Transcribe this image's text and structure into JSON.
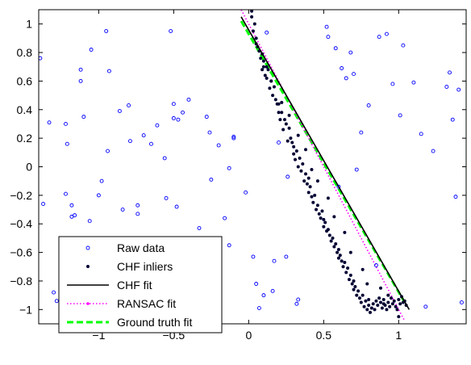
{
  "chart_data": {
    "type": "scatter",
    "title": "",
    "xlabel": "",
    "ylabel": "",
    "xlim": [
      -1.4,
      1.45
    ],
    "ylim": [
      -1.1,
      1.1
    ],
    "xticks": [
      -1,
      -0.5,
      0,
      0.5,
      1
    ],
    "xtick_labels": [
      "−1",
      "−0.5",
      "0",
      "0.5",
      "1"
    ],
    "yticks": [
      -1,
      -0.8,
      -0.6,
      -0.4,
      -0.2,
      0,
      0.2,
      0.4,
      0.6,
      0.8,
      1
    ],
    "ytick_labels": [
      "−1",
      "−0.8",
      "−0.6",
      "−0.4",
      "−0.2",
      "0",
      "0.2",
      "0.4",
      "0.6",
      "0.8",
      "1"
    ],
    "grid": false,
    "legend_position": "bottom-left",
    "series": [
      {
        "name": "Raw data",
        "kind": "markers",
        "marker": "open-circle",
        "color": "#0000ff",
        "x": [
          -1.39,
          -1.33,
          -1.28,
          -1.22,
          -1.21,
          -1.18,
          -1.16,
          -1.12,
          -1.1,
          -1.06,
          -1.05,
          -0.98,
          -0.95,
          -0.93,
          -0.86,
          -0.84,
          -0.8,
          -0.79,
          -0.74,
          -0.7,
          -0.65,
          -0.61,
          -0.56,
          -0.55,
          -0.52,
          -0.5,
          -0.47,
          -0.44,
          -0.4,
          -0.33,
          -0.28,
          -0.26,
          -0.2,
          -0.16,
          -0.13,
          -0.1,
          -0.1,
          -0.02,
          0.07,
          0.03,
          0.05,
          0.1,
          0.12,
          0.16,
          0.17,
          0.25,
          0.26,
          0.32,
          0.52,
          0.53,
          0.58,
          0.62,
          0.65,
          0.68,
          0.7,
          0.75,
          0.8,
          0.87,
          0.92,
          0.96,
          1.01,
          1.03,
          1.1,
          1.15,
          1.23,
          1.32,
          1.34,
          1.4,
          1.42,
          -1.37,
          -1.3,
          -1.22,
          -1.18,
          -1.12,
          -1.0,
          -0.94,
          -0.81,
          -0.74,
          -0.6,
          -0.48,
          -0.38,
          -0.33,
          -0.25,
          -0.13,
          0.2,
          0.33,
          0.6,
          0.72,
          0.85,
          1.18,
          1.36,
          1.38,
          -0.5,
          -0.78,
          -0.66
        ],
        "y": [
          0.76,
          0.31,
          -0.94,
          0.3,
          0.16,
          -0.27,
          -0.34,
          0.68,
          0.35,
          -0.38,
          0.82,
          -0.1,
          0.95,
          0.67,
          0.39,
          -0.3,
          0.43,
          0.18,
          -0.33,
          0.22,
          0.16,
          0.29,
          0.06,
          -0.22,
          0.95,
          0.34,
          0.33,
          0.38,
          0.47,
          -0.43,
          0.35,
          0.24,
          0.15,
          -0.36,
          -0.01,
          0.2,
          0.21,
          -0.18,
          -0.99,
          -0.63,
          -0.82,
          -0.9,
          0.94,
          -0.87,
          -0.66,
          -0.63,
          -0.07,
          -0.96,
          0.98,
          0.91,
          0.83,
          0.69,
          0.62,
          0.8,
          0.65,
          0.24,
          0.43,
          0.91,
          0.93,
          0.58,
          0.36,
          0.85,
          0.59,
          0.23,
          0.11,
          0.56,
          0.66,
          0.54,
          -0.95,
          -0.26,
          -0.88,
          -0.19,
          -0.35,
          0.6,
          -0.2,
          0.11,
          -0.56,
          -0.27,
          -0.62,
          -0.28,
          -0.66,
          -0.72,
          -0.09,
          -0.55,
          0.17,
          -0.93,
          -0.14,
          -0.02,
          -0.69,
          -0.98,
          0.33,
          -0.21,
          0.44,
          -0.76,
          -0.88
        ]
      },
      {
        "name": "CHF inliers",
        "kind": "markers",
        "marker": "filled-dot",
        "color": "#000033",
        "x": [
          0.02,
          0.03,
          0.04,
          0.05,
          0.05,
          0.06,
          0.07,
          0.08,
          0.09,
          0.1,
          0.1,
          0.11,
          0.12,
          0.13,
          0.14,
          0.15,
          0.16,
          0.17,
          0.18,
          0.19,
          0.2,
          0.2,
          0.21,
          0.22,
          0.23,
          0.24,
          0.25,
          0.26,
          0.27,
          0.28,
          0.29,
          0.3,
          0.3,
          0.31,
          0.32,
          0.33,
          0.34,
          0.35,
          0.36,
          0.37,
          0.38,
          0.39,
          0.4,
          0.4,
          0.41,
          0.42,
          0.43,
          0.44,
          0.45,
          0.46,
          0.47,
          0.48,
          0.49,
          0.5,
          0.5,
          0.51,
          0.52,
          0.53,
          0.54,
          0.55,
          0.56,
          0.57,
          0.58,
          0.59,
          0.6,
          0.6,
          0.61,
          0.62,
          0.63,
          0.64,
          0.65,
          0.66,
          0.67,
          0.68,
          0.69,
          0.7,
          0.7,
          0.71,
          0.72,
          0.73,
          0.74,
          0.75,
          0.76,
          0.77,
          0.78,
          0.79,
          0.8,
          0.8,
          0.81,
          0.82,
          0.83,
          0.84,
          0.85,
          0.86,
          0.87,
          0.88,
          0.89,
          0.9,
          0.9,
          0.91,
          0.92,
          0.93,
          0.94,
          0.95,
          0.96,
          0.97,
          0.98,
          0.99,
          1.0,
          1.01,
          1.02,
          1.03,
          1.04,
          1.05,
          0.12,
          0.22,
          0.33,
          0.46,
          0.57,
          0.68,
          0.79,
          0.93,
          0.02,
          0.09,
          0.27,
          0.38,
          0.53,
          0.64,
          0.76,
          0.88,
          1.0,
          0.15,
          0.42
        ],
        "y": [
          1.05,
          0.95,
          1.0,
          0.9,
          0.86,
          0.84,
          0.81,
          0.76,
          0.79,
          0.7,
          0.74,
          0.64,
          0.62,
          0.68,
          0.55,
          0.6,
          0.5,
          0.56,
          0.47,
          0.44,
          0.38,
          0.44,
          0.33,
          0.38,
          0.26,
          0.33,
          0.3,
          0.18,
          0.27,
          0.2,
          0.17,
          0.09,
          0.14,
          0.05,
          0.11,
          0.0,
          0.06,
          -0.03,
          0.02,
          -0.1,
          -0.05,
          -0.12,
          -0.08,
          -0.18,
          -0.14,
          -0.21,
          -0.25,
          -0.2,
          -0.3,
          -0.27,
          -0.33,
          -0.36,
          -0.31,
          -0.37,
          -0.42,
          -0.39,
          -0.45,
          -0.44,
          -0.48,
          -0.52,
          -0.5,
          -0.56,
          -0.54,
          -0.6,
          -0.58,
          -0.64,
          -0.62,
          -0.66,
          -0.7,
          -0.67,
          -0.74,
          -0.71,
          -0.79,
          -0.76,
          -0.82,
          -0.8,
          -0.86,
          -0.84,
          -0.9,
          -0.87,
          -0.92,
          -0.95,
          -0.9,
          -0.98,
          -0.94,
          -1.0,
          -0.97,
          -0.93,
          -1.02,
          -0.99,
          -0.96,
          -1.0,
          -0.94,
          -0.97,
          -0.92,
          -0.95,
          -0.99,
          -0.96,
          -0.93,
          -0.97,
          -1.0,
          -0.95,
          -0.98,
          -0.92,
          -0.96,
          -0.94,
          -0.98,
          -1.0,
          -0.93,
          -0.96,
          -0.91,
          -0.95,
          -0.94,
          -0.97,
          0.7,
          0.45,
          0.22,
          -0.1,
          -0.35,
          -0.6,
          -0.82,
          -0.9,
          1.09,
          0.68,
          0.36,
          0.12,
          -0.22,
          -0.46,
          -0.72,
          -0.85,
          -1.05,
          0.6,
          -0.02
        ]
      },
      {
        "name": "CHF fit",
        "kind": "line",
        "style": "solid",
        "color": "#000000",
        "x": [
          -0.05,
          1.07
        ],
        "y": [
          1.05,
          -1.0
        ]
      },
      {
        "name": "RANSAC fit",
        "kind": "line",
        "style": "dotted",
        "color": "#ff00ff",
        "x": [
          -0.05,
          1.04
        ],
        "y": [
          1.1,
          -1.08
        ]
      },
      {
        "name": "Ground truth fit",
        "kind": "line",
        "style": "dashed",
        "color": "#00ff00",
        "x": [
          -0.05,
          1.04
        ],
        "y": [
          1.02,
          -0.95
        ]
      }
    ]
  }
}
